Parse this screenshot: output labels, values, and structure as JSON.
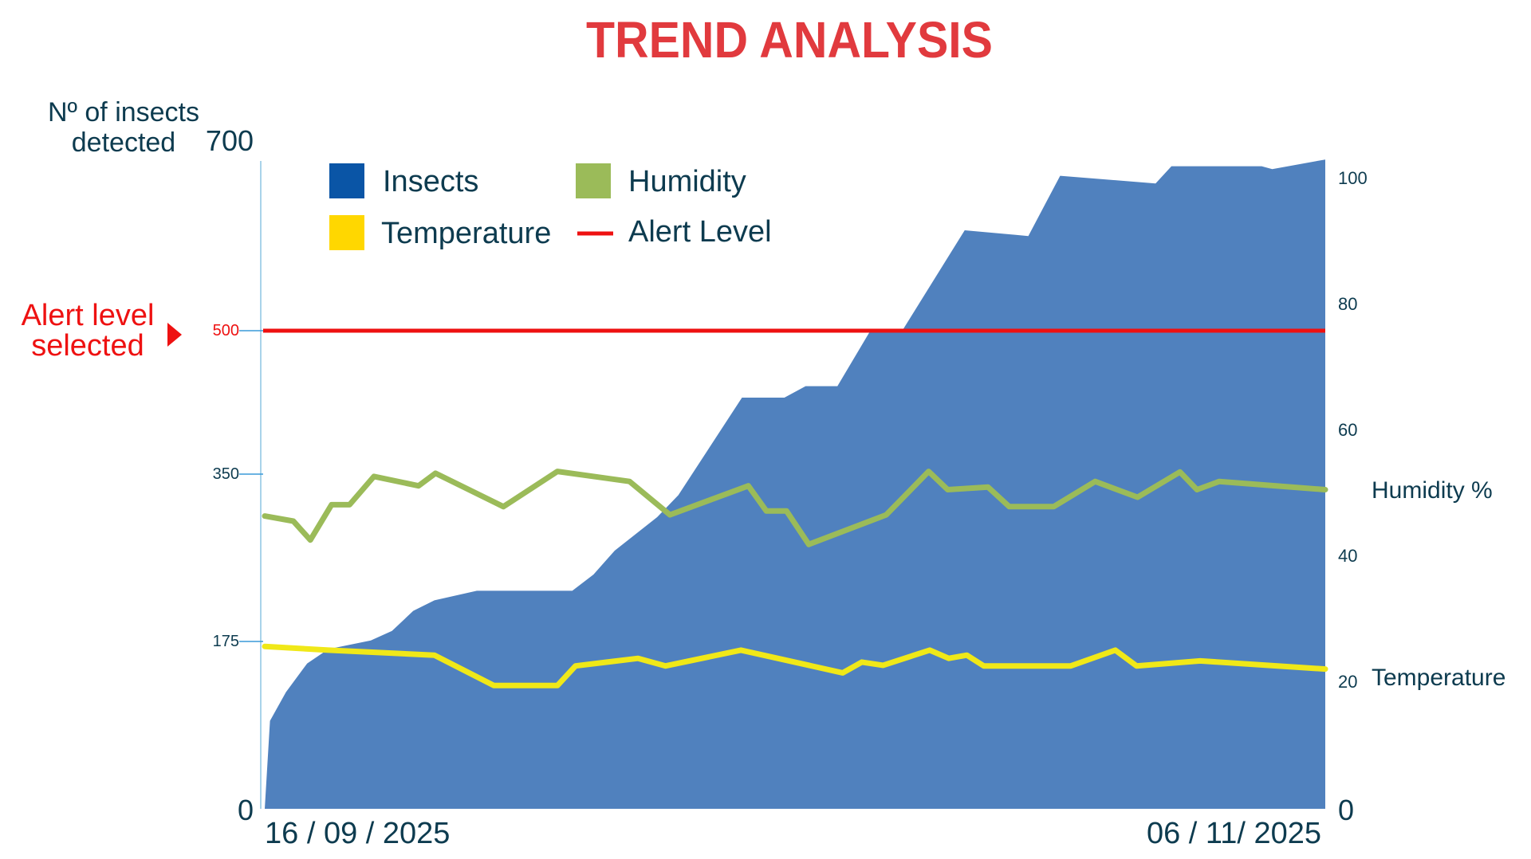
{
  "chart_data": {
    "type": "area",
    "title": "TREND ANALYSIS",
    "y_left_label_line1": "Nº of insects",
    "y_left_label_line2": "detected",
    "x_start_label": "16 / 09 / 2025",
    "x_end_label": "06 / 11/ 2025",
    "y_left_ticks": [
      "700",
      "500",
      "350",
      "175",
      "0"
    ],
    "y_left_tick_values": [
      700,
      500,
      350,
      175,
      0
    ],
    "y_left_range": [
      0,
      700
    ],
    "y_right_ticks": [
      "100",
      "80",
      "60",
      "40",
      "20",
      "0"
    ],
    "y_right_tick_values": [
      100,
      80,
      60,
      40,
      20,
      0
    ],
    "y_right_range": [
      0,
      100
    ],
    "right_series_labels": {
      "humidity": "Humidity %",
      "temperature": "Temperature"
    },
    "alert": {
      "label_line1": "Alert level",
      "label_line2": "selected",
      "value": 500
    },
    "legend": [
      {
        "key": "insects",
        "label": "Insects",
        "color": "#0a55a6"
      },
      {
        "key": "humidity",
        "label": "Humidity",
        "color": "#9bbb59"
      },
      {
        "key": "temperature",
        "label": "Temperature",
        "color": "#ffd700"
      },
      {
        "key": "alert",
        "label": "Alert Level",
        "color": "#ee1111"
      }
    ],
    "x_range": [
      0,
      100
    ],
    "series": [
      {
        "name": "Insects",
        "axis": "left",
        "color": "#5081be",
        "points": [
          [
            0,
            0
          ],
          [
            0.5,
            92
          ],
          [
            2,
            122
          ],
          [
            4,
            152
          ],
          [
            6,
            167
          ],
          [
            10,
            176
          ],
          [
            12,
            186
          ],
          [
            14,
            207
          ],
          [
            16,
            218
          ],
          [
            20,
            228
          ],
          [
            22,
            228
          ],
          [
            29,
            228
          ],
          [
            31,
            245
          ],
          [
            33,
            270
          ],
          [
            37,
            305
          ],
          [
            39,
            328
          ],
          [
            45,
            430
          ],
          [
            49,
            430
          ],
          [
            51,
            442
          ],
          [
            54,
            442
          ],
          [
            57,
            498
          ],
          [
            60,
            498
          ],
          [
            66,
            605
          ],
          [
            72,
            599
          ],
          [
            75,
            662
          ],
          [
            84,
            654
          ],
          [
            85.5,
            672
          ],
          [
            94,
            672
          ],
          [
            95,
            669
          ],
          [
            100,
            679
          ]
        ]
      },
      {
        "name": "Humidity",
        "axis": "right",
        "color": "#9bbb59",
        "points": [
          [
            0,
            46.5
          ],
          [
            2.7,
            45.7
          ],
          [
            4.3,
            42.7
          ],
          [
            6.3,
            48.3
          ],
          [
            8,
            48.3
          ],
          [
            10.3,
            52.8
          ],
          [
            14.5,
            51.3
          ],
          [
            16.1,
            53.3
          ],
          [
            22.5,
            48
          ],
          [
            27.6,
            53.6
          ],
          [
            34.4,
            52
          ],
          [
            38.2,
            46.7
          ],
          [
            45.6,
            51.3
          ],
          [
            47.3,
            47.3
          ],
          [
            49.2,
            47.3
          ],
          [
            51.3,
            42
          ],
          [
            58.6,
            46.7
          ],
          [
            62.6,
            53.6
          ],
          [
            64.4,
            50.7
          ],
          [
            68.2,
            51.1
          ],
          [
            70.2,
            48
          ],
          [
            74.4,
            48
          ],
          [
            78.3,
            52
          ],
          [
            82.3,
            49.5
          ],
          [
            86.3,
            53.5
          ],
          [
            87.9,
            50.7
          ],
          [
            90,
            52
          ],
          [
            100,
            50.7
          ]
        ]
      },
      {
        "name": "Temperature",
        "axis": "right",
        "color": "#f0e818",
        "points": [
          [
            0,
            25.8
          ],
          [
            6,
            25.2
          ],
          [
            16,
            24.4
          ],
          [
            21.6,
            19.6
          ],
          [
            27.6,
            19.6
          ],
          [
            29.3,
            22.7
          ],
          [
            35.2,
            23.9
          ],
          [
            37.8,
            22.7
          ],
          [
            44.9,
            25.2
          ],
          [
            54.5,
            21.6
          ],
          [
            56.3,
            23.3
          ],
          [
            58.3,
            22.8
          ],
          [
            62.7,
            25.2
          ],
          [
            64.5,
            23.9
          ],
          [
            66.2,
            24.4
          ],
          [
            67.8,
            22.7
          ],
          [
            76,
            22.7
          ],
          [
            80.2,
            25.2
          ],
          [
            82.2,
            22.7
          ],
          [
            88.2,
            23.5
          ],
          [
            100,
            22.2
          ]
        ]
      }
    ]
  }
}
